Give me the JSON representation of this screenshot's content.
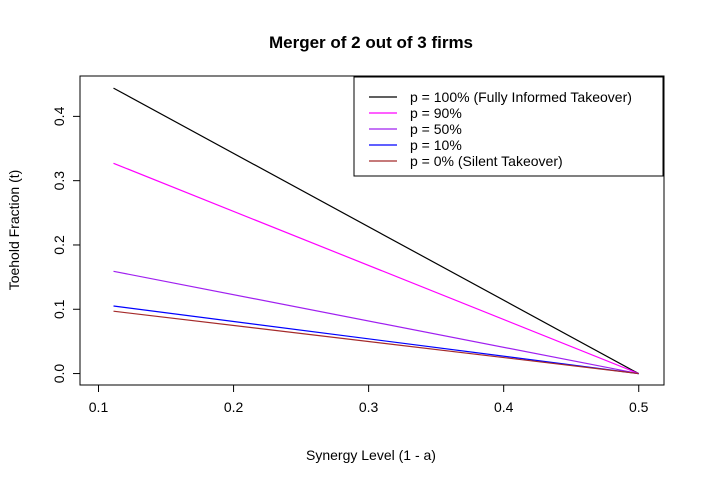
{
  "chart_data": {
    "type": "line",
    "title": "Merger of 2 out of 3 firms",
    "xlabel": "Synergy Level (1 - a)",
    "ylabel": "Toehold Fraction (t)",
    "xlim": [
      0.0863,
      0.5187
    ],
    "ylim": [
      -0.0178,
      0.4628
    ],
    "xticks": [
      0.1,
      0.2,
      0.3,
      0.4,
      0.5
    ],
    "yticks": [
      0.0,
      0.1,
      0.2,
      0.3,
      0.4
    ],
    "xtick_labels": [
      "0.1",
      "0.2",
      "0.3",
      "0.4",
      "0.5"
    ],
    "ytick_labels": [
      "0.0",
      "0.1",
      "0.2",
      "0.3",
      "0.4"
    ],
    "grid": false,
    "legend_position": "top-right",
    "series": [
      {
        "name": "p = 100% (Fully Informed Takeover)",
        "color": "#000000",
        "x": [
          0.1111,
          0.5
        ],
        "y": [
          0.444,
          0.0
        ]
      },
      {
        "name": "p = 90%",
        "color": "#ff00ff",
        "x": [
          0.1111,
          0.5
        ],
        "y": [
          0.327,
          0.0
        ]
      },
      {
        "name": "p = 50%",
        "color": "#a020f0",
        "x": [
          0.1111,
          0.5
        ],
        "y": [
          0.159,
          0.0
        ]
      },
      {
        "name": "p = 10%",
        "color": "#0000ff",
        "x": [
          0.1111,
          0.5
        ],
        "y": [
          0.105,
          0.0
        ]
      },
      {
        "name": "p = 0% (Silent Takeover)",
        "color": "#a52a2a",
        "x": [
          0.1111,
          0.5
        ],
        "y": [
          0.097,
          0.0
        ]
      }
    ]
  }
}
